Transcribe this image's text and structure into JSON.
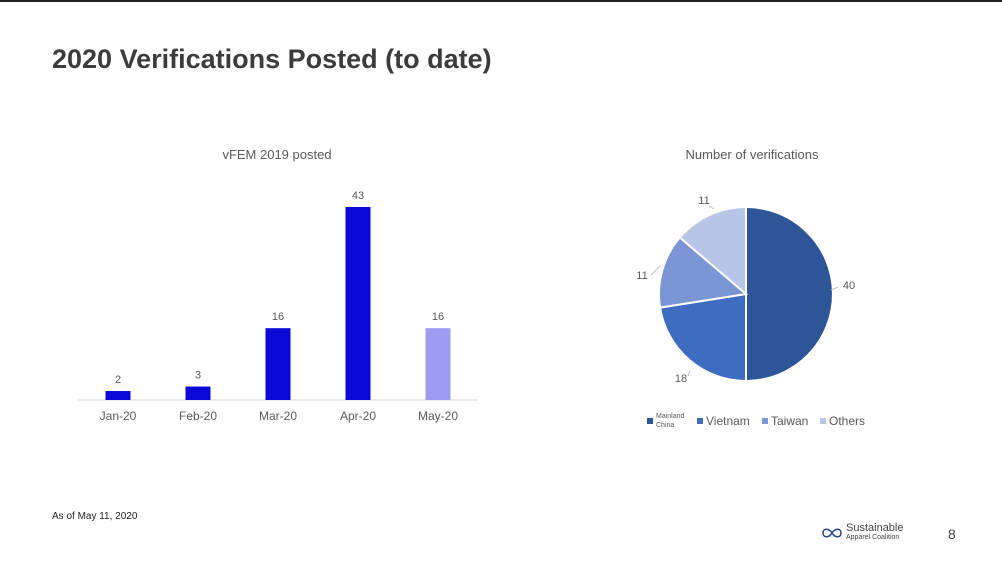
{
  "slide": {
    "title": "2020 Verifications Posted (to date)",
    "footnote": "As of May 11, 2020",
    "page_number": "8",
    "logo": {
      "name": "infinity-logo",
      "line1": "Sustainable",
      "line2": "Apparel Coalition"
    }
  },
  "chart_data": [
    {
      "type": "bar",
      "title": "vFEM 2019 posted",
      "categories": [
        "Jan-20",
        "Feb-20",
        "Mar-20",
        "Apr-20",
        "May-20"
      ],
      "values": [
        2,
        3,
        16,
        43,
        16
      ],
      "colors": [
        "#0a0ad8",
        "#0a0ad8",
        "#0a0ad8",
        "#0a0ad8",
        "#9c9cf0"
      ],
      "ylim": [
        0,
        43
      ],
      "grid": false,
      "legend": "none"
    },
    {
      "type": "pie",
      "title": "Number of verifications",
      "categories": [
        "Mainland China",
        "Vietnam",
        "Taiwan",
        "Others"
      ],
      "values": [
        40,
        18,
        11,
        11
      ],
      "colors": [
        "#2e5597",
        "#3d6cc0",
        "#7b96d4",
        "#b7c5e6"
      ],
      "legend": "bottom"
    }
  ]
}
